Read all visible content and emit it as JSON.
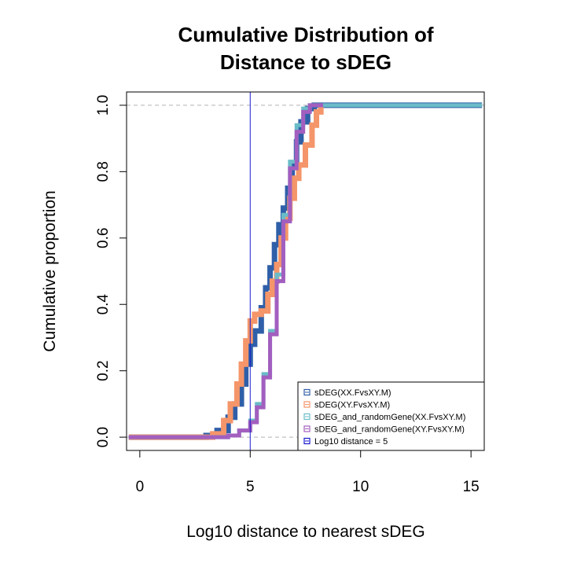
{
  "chart_data": {
    "type": "line",
    "title_lines": [
      "Cumulative Distribution of",
      "Distance to sDEG"
    ],
    "xlabel": "Log10 distance to nearest sDEG",
    "ylabel": "Cumulative proportion",
    "xlim": [
      -0.6,
      15.6
    ],
    "ylim": [
      -0.04,
      1.04
    ],
    "x_ticks": [
      0,
      5,
      10,
      15
    ],
    "y_ticks": [
      0.0,
      0.2,
      0.4,
      0.6,
      0.8,
      1.0
    ],
    "y_tick_labels": [
      "0.0",
      "0.2",
      "0.4",
      "0.6",
      "0.8",
      "1.0"
    ],
    "hlines": [
      0,
      1
    ],
    "vline": 5,
    "legend_position": "bottom-right",
    "series": [
      {
        "name": "sDEG(XX.FvsXY.M)",
        "color": "#2f5fa8",
        "x": [
          -0.5,
          2.0,
          3.0,
          3.5,
          4.0,
          4.3,
          4.6,
          4.8,
          5.0,
          5.2,
          5.5,
          5.7,
          5.9,
          6.1,
          6.3,
          6.5,
          6.7,
          6.9,
          7.1,
          7.3,
          7.6,
          7.9,
          8.2,
          15.5
        ],
        "y": [
          0.0,
          0.0,
          0.005,
          0.02,
          0.06,
          0.1,
          0.16,
          0.22,
          0.28,
          0.32,
          0.39,
          0.45,
          0.51,
          0.58,
          0.64,
          0.69,
          0.75,
          0.82,
          0.89,
          0.95,
          0.99,
          1.0,
          1.0,
          1.0
        ]
      },
      {
        "name": "sDEG(XY.FvsXY.M)",
        "color": "#f4956a",
        "x": [
          -0.5,
          2.5,
          3.3,
          3.8,
          4.1,
          4.4,
          4.6,
          4.8,
          5.0,
          5.2,
          5.5,
          5.8,
          6.0,
          6.2,
          6.4,
          6.6,
          6.8,
          7.0,
          7.2,
          7.5,
          7.8,
          8.0,
          8.2
        ],
        "y": [
          0.0,
          0.0,
          0.01,
          0.05,
          0.1,
          0.16,
          0.22,
          0.29,
          0.35,
          0.37,
          0.38,
          0.43,
          0.47,
          0.52,
          0.6,
          0.66,
          0.72,
          0.78,
          0.82,
          0.88,
          0.94,
          0.98,
          1.0
        ]
      },
      {
        "name": "sDEG_and_randomGene(XX.FvsXY.M)",
        "color": "#6bbcc9",
        "x": [
          -0.5,
          3.0,
          4.0,
          4.5,
          5.0,
          5.3,
          5.6,
          5.9,
          6.2,
          6.5,
          6.8,
          7.1,
          7.4,
          7.7,
          8.0,
          9.2,
          15.5
        ],
        "y": [
          0.0,
          0.0,
          0.005,
          0.02,
          0.05,
          0.1,
          0.19,
          0.32,
          0.49,
          0.67,
          0.83,
          0.94,
          0.99,
          1.0,
          1.0,
          1.0,
          1.0
        ]
      },
      {
        "name": "sDEG_and_randomGene(XY.FvsXY.M)",
        "color": "#a25fbf",
        "x": [
          -0.5,
          3.0,
          4.0,
          4.5,
          5.0,
          5.3,
          5.6,
          5.9,
          6.2,
          6.5,
          6.8,
          7.1,
          7.4,
          7.7,
          8.0,
          8.3
        ],
        "y": [
          0.0,
          0.0,
          0.005,
          0.02,
          0.045,
          0.09,
          0.18,
          0.31,
          0.47,
          0.65,
          0.81,
          0.92,
          0.98,
          1.0,
          1.0,
          1.0
        ]
      }
    ],
    "legend": [
      {
        "label": "sDEG(XX.FvsXY.M)",
        "color": "#2f5fa8"
      },
      {
        "label": "sDEG(XY.FvsXY.M)",
        "color": "#f4956a"
      },
      {
        "label": "sDEG_and_randomGene(XX.FvsXY.M)",
        "color": "#6bbcc9"
      },
      {
        "label": "sDEG_and_randomGene(XY.FvsXY.M)",
        "color": "#a25fbf"
      },
      {
        "label": "Log10 distance = 5",
        "color": "#1a1ad0"
      }
    ],
    "colors": {
      "reference_lines": "#b3b3b3",
      "vline": "#1a1ad0",
      "axis": "#000000"
    }
  }
}
